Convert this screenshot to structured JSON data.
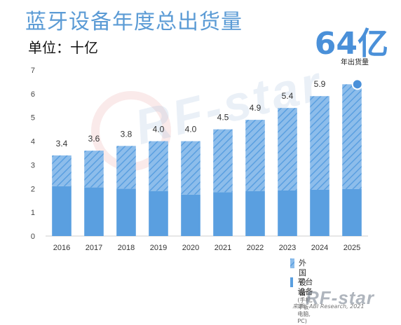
{
  "header": {
    "title": "蓝牙设备年度总出货量",
    "unit": "单位：十亿",
    "highlight_value": "64亿",
    "highlight_caption": "年出货量"
  },
  "legend": {
    "external_label": "外国设备",
    "platform_label": "平台设备",
    "platform_note": "(手机, 平板电脑, PC)"
  },
  "source": "来源：ABI Research, 2021",
  "watermark": "RF-star",
  "colors": {
    "platform": "#5a9fe0",
    "external": "#8dbdeb",
    "external_hatch": "#5a9fe0",
    "highlight": "#4a90d9"
  },
  "chart_data": {
    "type": "bar",
    "stacked": true,
    "title": "蓝牙设备年度总出货量",
    "ylabel": "单位：十亿",
    "xlabel": "",
    "ylim": [
      0,
      7
    ],
    "yticks": [
      0,
      1,
      2,
      3,
      4,
      5,
      6,
      7
    ],
    "grid": false,
    "legend_position": "bottom-right",
    "categories": [
      "2016",
      "2017",
      "2018",
      "2019",
      "2020",
      "2021",
      "2022",
      "2023",
      "2024",
      "2025"
    ],
    "totals": [
      3.4,
      3.6,
      3.8,
      4.0,
      4.0,
      4.5,
      4.9,
      5.4,
      5.9,
      6.4
    ],
    "total_labels": [
      "3.4",
      "3.6",
      "3.8",
      "4.0",
      "4.0",
      "4.5",
      "4.9",
      "5.4",
      "5.9",
      ""
    ],
    "series": [
      {
        "name": "平台设备",
        "values": [
          2.1,
          2.05,
          2.0,
          1.9,
          1.75,
          1.85,
          1.9,
          1.92,
          1.95,
          1.98
        ]
      },
      {
        "name": "外国设备",
        "values": [
          1.3,
          1.55,
          1.8,
          2.1,
          2.25,
          2.65,
          3.0,
          3.48,
          3.95,
          4.42
        ]
      }
    ]
  }
}
